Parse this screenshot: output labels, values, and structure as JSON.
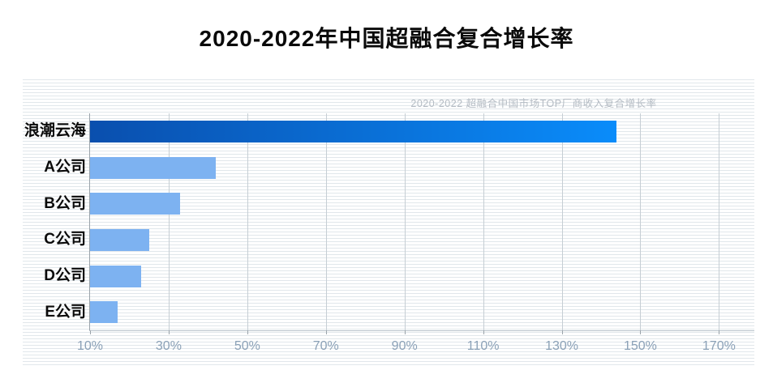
{
  "page": {
    "title": "2020-2022年中国超融合复合增长率"
  },
  "chart_data": {
    "type": "bar",
    "orientation": "horizontal",
    "title": "2020-2022年中国超融合复合增长率",
    "subtitle": "2020-2022 超融合中国市场TOP厂商收入复合增长率",
    "categories": [
      "浪潮云海",
      "A公司",
      "B公司",
      "C公司",
      "D公司",
      "E公司"
    ],
    "values": [
      144,
      42,
      33,
      25,
      23,
      17
    ],
    "unit": "%",
    "axis_min": 10,
    "axis_max": 179,
    "x_ticks": [
      "10%",
      "30%",
      "50%",
      "70%",
      "90%",
      "110%",
      "130%",
      "150%",
      "170%"
    ],
    "x_tick_values": [
      10,
      30,
      50,
      70,
      90,
      110,
      130,
      150,
      170
    ],
    "grid": true,
    "legend": "none",
    "colors": {
      "highlight_bar_gradient_start": "#0a4fae",
      "highlight_bar_gradient_end": "#0a8cfa",
      "default_bar": "#7db2f1",
      "gridline": "#c6ced4",
      "axis_line_y": "#9aa3aa",
      "axis_line_x": "#b7c2cb",
      "tick_label": "#8ba1b7",
      "subtitle": "#b4bbc3",
      "stripe_line": "#e1e7eb"
    }
  }
}
